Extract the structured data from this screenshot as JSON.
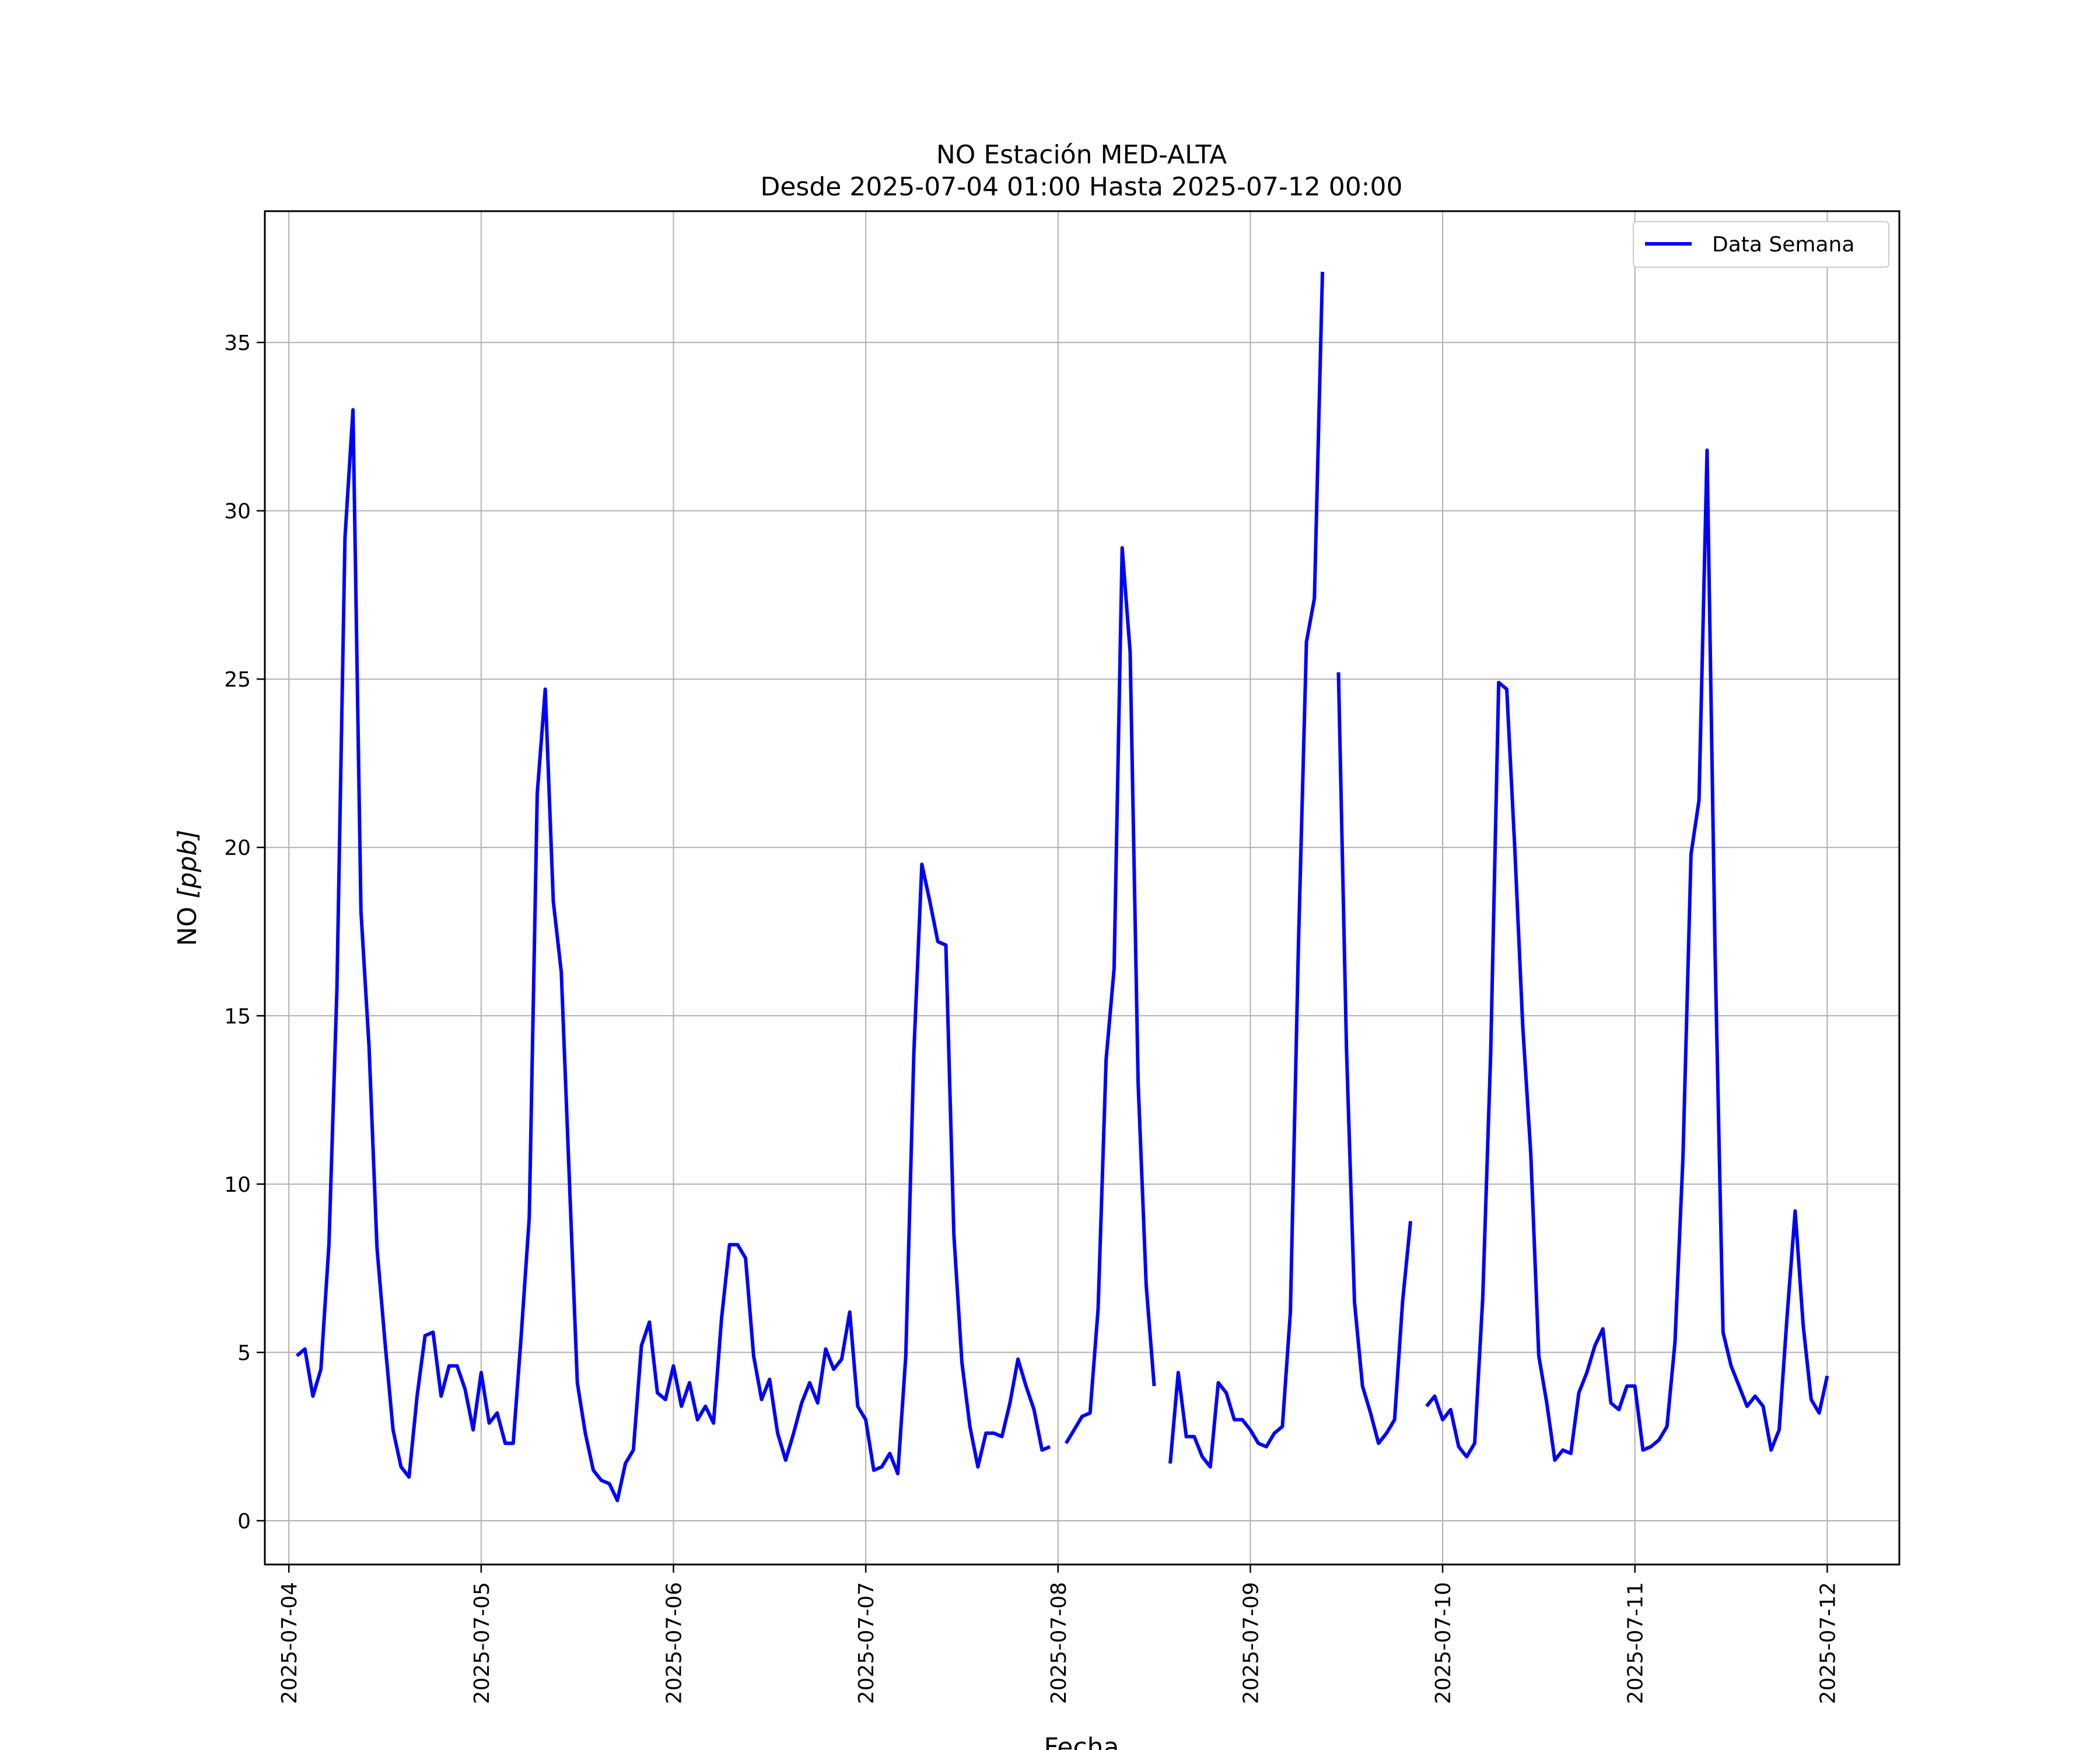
{
  "chart_data": {
    "type": "line",
    "title": "NO Estación MED-ALTA",
    "subtitle": "Desde 2025-07-04 01:00 Hasta 2025-07-12 00:00",
    "xlabel": "Fecha",
    "ylabel_main": "NO ",
    "ylabel_unit": "[ppb]",
    "xlim": [
      "2025-07-03T21:00",
      "2025-07-12T09:00"
    ],
    "ylim": [
      -1.3,
      38.9
    ],
    "x_ticks": [
      "2025-07-04",
      "2025-07-05",
      "2025-07-06",
      "2025-07-07",
      "2025-07-08",
      "2025-07-09",
      "2025-07-10",
      "2025-07-11",
      "2025-07-12"
    ],
    "y_ticks": [
      0,
      5,
      10,
      15,
      20,
      25,
      30,
      35
    ],
    "grid": true,
    "legend_position": "top-right",
    "series": [
      {
        "name": "Data Semana",
        "color": "#0000ff",
        "start": "2025-07-04T01:00",
        "interval_hours": 1,
        "values": [
          4.9,
          5.1,
          3.7,
          4.5,
          8.2,
          15.8,
          29.2,
          33.0,
          18.1,
          14.1,
          8.1,
          5.3,
          2.7,
          1.6,
          1.3,
          3.7,
          5.5,
          5.6,
          3.7,
          4.6,
          4.6,
          3.9,
          2.7,
          4.4,
          2.9,
          3.2,
          2.3,
          2.3,
          5.5,
          9.0,
          21.6,
          24.7,
          18.4,
          16.3,
          10.2,
          4.1,
          2.6,
          1.5,
          1.2,
          1.1,
          0.6,
          1.7,
          2.1,
          5.2,
          5.9,
          3.8,
          3.6,
          4.6,
          3.4,
          4.1,
          3.0,
          3.4,
          2.9,
          6.0,
          8.2,
          8.2,
          7.8,
          4.9,
          3.6,
          4.2,
          2.6,
          1.8,
          2.6,
          3.5,
          4.1,
          3.5,
          5.1,
          4.5,
          4.8,
          6.2,
          3.4,
          3.0,
          1.5,
          1.6,
          2.0,
          1.4,
          4.9,
          13.9,
          19.5,
          18.4,
          17.2,
          17.1,
          8.5,
          4.7,
          2.8,
          1.6,
          2.6,
          2.6,
          2.5,
          3.5,
          4.8,
          4.0,
          3.3,
          2.1,
          2.2,
          null,
          2.3,
          2.7,
          3.1,
          3.2,
          6.3,
          13.7,
          16.4,
          28.9,
          25.8,
          13.0,
          7.0,
          4.0,
          null,
          1.7,
          4.4,
          2.5,
          2.5,
          1.9,
          1.6,
          4.1,
          3.8,
          3.0,
          3.0,
          2.7,
          2.3,
          2.2,
          2.6,
          2.8,
          6.2,
          17.1,
          26.1,
          27.4,
          37.1,
          null,
          25.2,
          14.0,
          6.5,
          4.0,
          3.2,
          2.3,
          2.6,
          3.0,
          6.5,
          8.9,
          null,
          3.4,
          3.7,
          3.0,
          3.3,
          2.2,
          1.9,
          2.3,
          6.6,
          13.9,
          24.9,
          24.7,
          20.0,
          14.7,
          10.9,
          4.9,
          3.5,
          1.8,
          2.1,
          2.0,
          3.8,
          4.4,
          5.2,
          5.7,
          3.5,
          3.3,
          4.0,
          4.0,
          2.1,
          2.2,
          2.4,
          2.8,
          5.3,
          10.8,
          19.8,
          21.4,
          31.8,
          16.9,
          5.6,
          4.6,
          4.0,
          3.4,
          3.7,
          3.4,
          2.1,
          2.7,
          6.1,
          9.2,
          5.8,
          3.6,
          3.2,
          4.3
        ]
      }
    ]
  }
}
